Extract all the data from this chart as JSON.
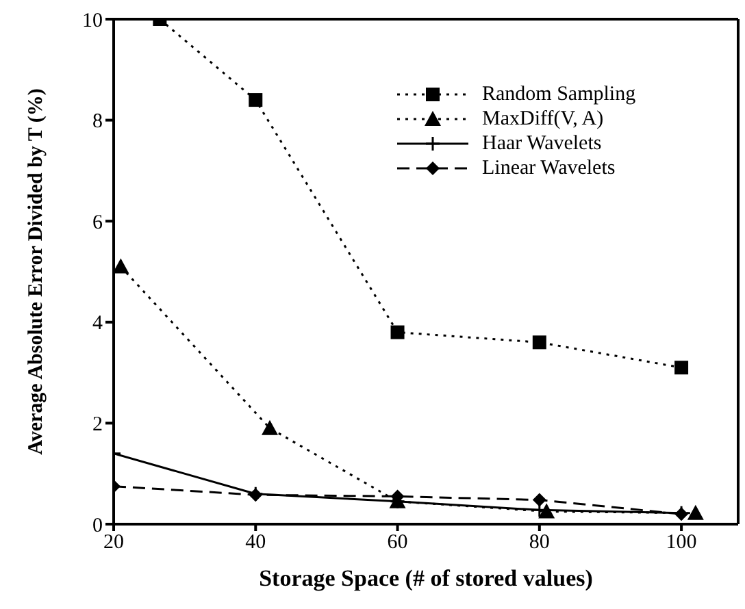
{
  "chart_data": {
    "type": "line",
    "xlabel": "Storage Space (# of stored values)",
    "ylabel": "Average Absolute Error Divided by T (%)",
    "xlim": [
      20,
      108
    ],
    "xticks": [
      20,
      40,
      60,
      80,
      100
    ],
    "ylim": [
      0,
      10
    ],
    "yticks": [
      0,
      2,
      4,
      6,
      8,
      10
    ],
    "legend": "top right",
    "series": [
      {
        "name": "Random Sampling",
        "color": "#000000",
        "marker": "square",
        "line_style": "dotted",
        "x": [
          26.5,
          40,
          60,
          80,
          100
        ],
        "values": [
          10,
          8.4,
          3.8,
          3.6,
          3.1
        ]
      },
      {
        "name": "MaxDiff(V, A)",
        "color": "#000000",
        "marker": "triangle",
        "line_style": "dotted",
        "x": [
          21,
          42,
          60,
          81,
          102
        ],
        "values": [
          5.1,
          1.9,
          0.45,
          0.25,
          0.22
        ]
      },
      {
        "name": "Haar Wavelets",
        "color": "#000000",
        "marker": "cross",
        "line_style": "solid",
        "x": [
          20,
          40,
          60,
          80,
          100
        ],
        "values": [
          1.4,
          0.6,
          0.45,
          0.28,
          0.22
        ]
      },
      {
        "name": "Linear Wavelets",
        "color": "#000000",
        "marker": "diamond",
        "line_style": "dashed",
        "x": [
          20,
          40,
          60,
          80,
          100
        ],
        "values": [
          0.75,
          0.58,
          0.55,
          0.48,
          0.2
        ]
      }
    ]
  }
}
